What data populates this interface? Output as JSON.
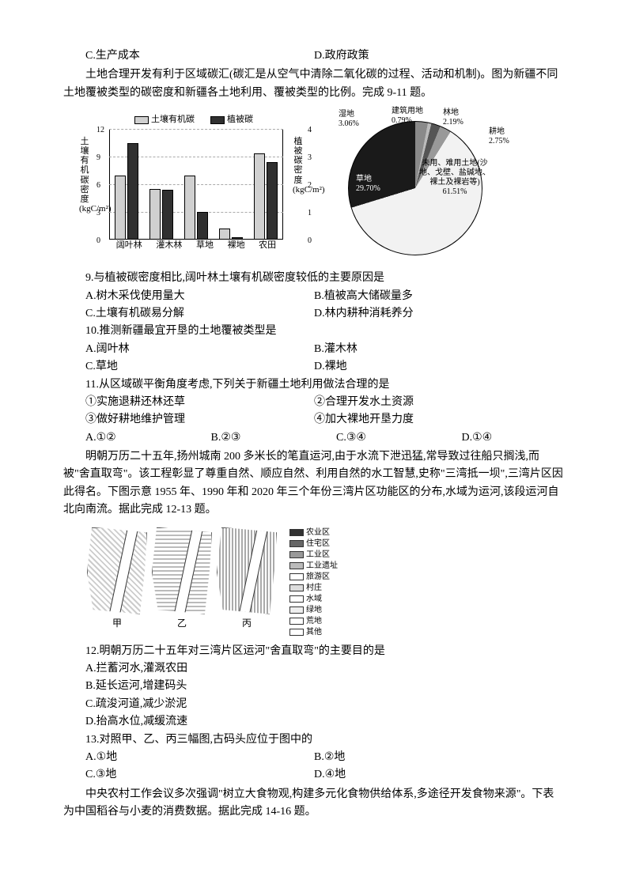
{
  "top_options": {
    "c": "C.生产成本",
    "d": "D.政府政策"
  },
  "intro1": "土地合理开发有利于区域碳汇(碳汇是从空气中清除二氧化碳的过程、活动和机制)。图为新疆不同土地覆被类型的碳密度和新疆各土地利用、覆被类型的比例。完成 9-11 题。",
  "bar_chart": {
    "legend": {
      "a": "土壤有机碳",
      "b": "植被碳"
    },
    "y_left_label": "土壤有机碳密度 (kgC/m²)",
    "y_right_label": "植被碳密度 (kgC/m²)",
    "y_left_ticks": [
      "0",
      "3",
      "6",
      "9",
      "12"
    ],
    "y_right_ticks": [
      "0",
      "1",
      "2",
      "3",
      "4"
    ],
    "categories": [
      "阔叶林",
      "灌木林",
      "草地",
      "裸地",
      "农田"
    ],
    "soil": [
      7.0,
      5.5,
      7.0,
      1.2,
      9.4
    ],
    "veg": [
      3.5,
      1.8,
      1.0,
      0.1,
      2.8
    ],
    "left_max": 12,
    "right_max": 4,
    "bar_colors": {
      "light": "#d0d0d0",
      "dark": "#303030"
    }
  },
  "pie_chart": {
    "labels": {
      "wet": "湿地\n3.06%",
      "build": "建筑用地\n0.79%",
      "forest": "林地\n2.19%",
      "crop": "耕地\n2.75%",
      "grass": "草地\n29.70%",
      "unused": "未用、难用土地(沙地、戈壁、盐碱地、裸土及裸岩等)\n61.51%"
    }
  },
  "q9": {
    "stem": "9.与植被碳密度相比,阔叶林土壤有机碳密度较低的主要原因是",
    "a": "A.树木采伐使用量大",
    "b": "B.植被高大储碳量多",
    "c": "C.土壤有机碳易分解",
    "d": "D.林内耕种消耗养分"
  },
  "q10": {
    "stem": "10.推测新疆最宜开垦的土地覆被类型是",
    "a": "A.阔叶林",
    "b": "B.灌木林",
    "c": "C.草地",
    "d": "D.裸地"
  },
  "q11": {
    "stem": "11.从区域碳平衡角度考虑,下列关于新疆土地利用做法合理的是",
    "o1": "①实施退耕还林还草",
    "o2": "②合理开发水土资源",
    "o3": "③做好耕地维护管理",
    "o4": "④加大裸地开垦力度",
    "a": "A.①②",
    "b": "B.②③",
    "c": "C.③④",
    "d": "D.①④"
  },
  "intro2": "明朝万历二十五年,扬州城南 200 多米长的笔直运河,由于水流下泄迅猛,常导致过往船只搁浅,而被\"舍直取弯\"。该工程彰显了尊重自然、顺应自然、利用自然的水工智慧,史称\"三湾抵一坝\",三湾片区因此得名。下图示意 1955 年、1990 年和 2020 年三个年份三湾片区功能区的分布,水域为运河,该段运河自北向南流。据此完成 12-13 题。",
  "map_captions": {
    "a": "甲",
    "b": "乙",
    "c": "丙"
  },
  "map_legend": [
    "农业区",
    "住宅区",
    "工业区",
    "工业遗址",
    "旅游区",
    "村庄",
    "水域",
    "绿地",
    "荒地",
    "其他"
  ],
  "q12": {
    "stem": "12.明朝万历二十五年对三湾片区运河\"舍直取弯\"的主要目的是",
    "a": "A.拦蓄河水,灌溉农田",
    "b": "B.延长运河,增建码头",
    "c": "C.疏浚河道,减少淤泥",
    "d": "D.抬高水位,减缓流速"
  },
  "q13": {
    "stem": "13.对照甲、乙、丙三幅图,古码头应位于图中的",
    "a": "A.①地",
    "b": "B.②地",
    "c": "C.③地",
    "d": "D.④地"
  },
  "intro3": "中央农村工作会议多次强调\"树立大食物观,构建多元化食物供给体系,多途径开发食物来源\"。下表为中国稻谷与小麦的消费数据。据此完成 14-16 题。"
}
